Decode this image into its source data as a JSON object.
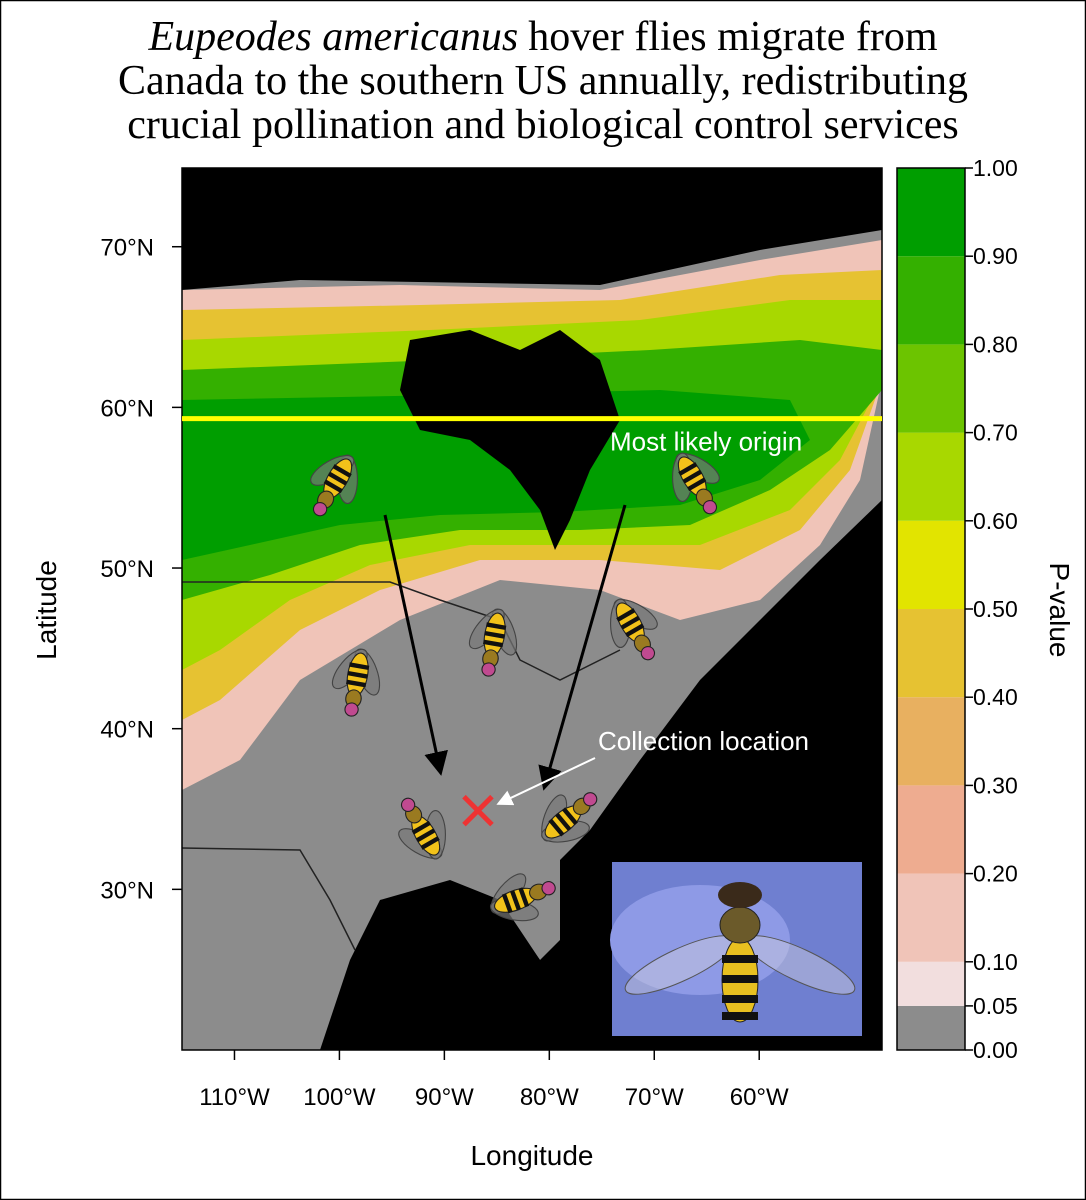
{
  "title": {
    "italic": "Eupeodes americanus",
    "rest": "hover flies migrate from",
    "lines": [
      "Canada to the southern US annually, redistributing",
      "crucial pollination and biological control services"
    ]
  },
  "map": {
    "xlabel": "Longitude",
    "ylabel": "Latitude",
    "xlim": [
      -115,
      -48.3
    ],
    "ylim": [
      20,
      74.9
    ],
    "xticks": [
      {
        "value": -110,
        "label": "110°W"
      },
      {
        "value": -100,
        "label": "100°W"
      },
      {
        "value": -90,
        "label": "90°W"
      },
      {
        "value": -80,
        "label": "80°W"
      },
      {
        "value": -70,
        "label": "70°W"
      },
      {
        "value": -60,
        "label": "60°W"
      }
    ],
    "yticks": [
      {
        "value": 30,
        "label": "30°N"
      },
      {
        "value": 40,
        "label": "40°N"
      },
      {
        "value": 50,
        "label": "50°N"
      },
      {
        "value": 60,
        "label": "60°N"
      },
      {
        "value": 70,
        "label": "70°N"
      }
    ],
    "origin_label": "Most likely origin",
    "origin_latitude": 59.3,
    "origin_color": "#ffff00",
    "collection_label": "Collection location",
    "collection_point": {
      "lon": -86.8,
      "lat": 34.9
    },
    "collection_color": "#ee3333"
  },
  "colorbar": {
    "label": "P-value",
    "lim": [
      0,
      1
    ],
    "breaks": [
      0,
      0.05,
      0.1,
      0.2,
      0.3,
      0.4,
      0.5,
      0.6,
      0.7,
      0.8,
      0.9,
      1
    ],
    "colors": [
      "#8c8c8c",
      "#f2dede",
      "#f0c4b8",
      "#eeac90",
      "#e8b060",
      "#e6c232",
      "#e2e400",
      "#a8d800",
      "#6cc400",
      "#34b000",
      "#009e00"
    ],
    "ticks": [
      {
        "value": 0,
        "label": "0.00"
      },
      {
        "value": 0.05,
        "label": "0.05"
      },
      {
        "value": 0.1,
        "label": "0.10"
      },
      {
        "value": 0.2,
        "label": "0.20"
      },
      {
        "value": 0.3,
        "label": "0.30"
      },
      {
        "value": 0.4,
        "label": "0.40"
      },
      {
        "value": 0.5,
        "label": "0.50"
      },
      {
        "value": 0.6,
        "label": "0.60"
      },
      {
        "value": 0.7,
        "label": "0.70"
      },
      {
        "value": 0.8,
        "label": "0.80"
      },
      {
        "value": 0.9,
        "label": "0.90"
      },
      {
        "value": 1,
        "label": "1.00"
      }
    ]
  }
}
